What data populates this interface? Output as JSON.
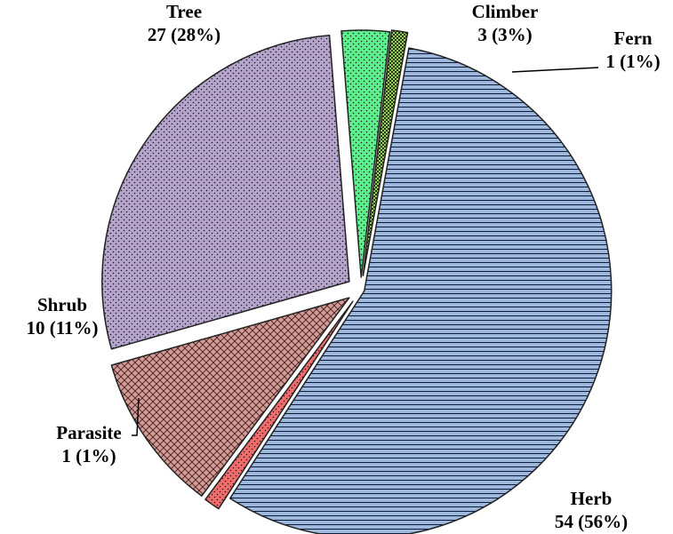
{
  "chart_data": {
    "type": "pie",
    "title": "",
    "slices": [
      {
        "name": "Herb",
        "value": 54,
        "percent": "56%",
        "label_line1": "Herb",
        "label_line2": "54 (56%)",
        "color": "#9db8dc",
        "pattern": "horizontal-lines"
      },
      {
        "name": "Parasite",
        "value": 1,
        "percent": "1%",
        "label_line1": "Parasite",
        "label_line2": "1 (1%)",
        "color": "#f26c6c",
        "pattern": "dots"
      },
      {
        "name": "Shrub",
        "value": 10,
        "percent": "11%",
        "label_line1": "Shrub",
        "label_line2": "10 (11%)",
        "color": "#d49a96",
        "pattern": "crosshatch"
      },
      {
        "name": "Tree",
        "value": 27,
        "percent": "28%",
        "label_line1": "Tree",
        "label_line2": "27 (28%)",
        "color": "#b5a4cc",
        "pattern": "dots"
      },
      {
        "name": "Climber",
        "value": 3,
        "percent": "3%",
        "label_line1": "Climber",
        "label_line2": "3 (3%)",
        "color": "#5ef08e",
        "pattern": "dots"
      },
      {
        "name": "Fern",
        "value": 1,
        "percent": "1%",
        "label_line1": "Fern",
        "label_line2": "1 (1%)",
        "color": "#9ccc5e",
        "pattern": "checker"
      }
    ],
    "legend": "none",
    "exploded": true
  }
}
